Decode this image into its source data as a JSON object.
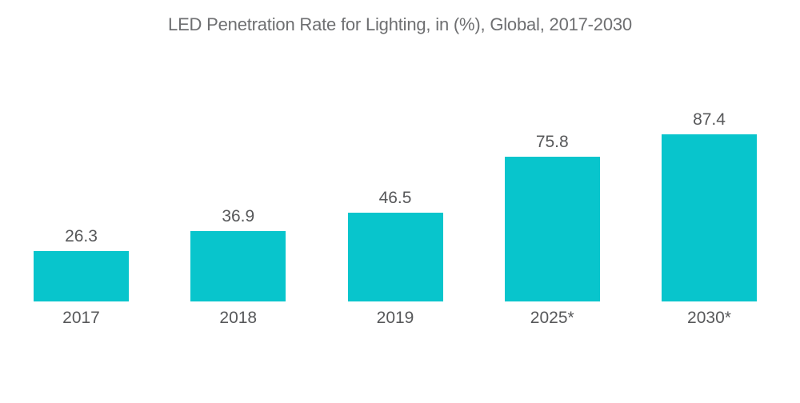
{
  "colors": {
    "background": "#ffffff",
    "bar": "#08c5cc",
    "title_text": "#6e6f71",
    "label_text": "#57585a"
  },
  "chart_data": {
    "type": "bar",
    "title": "LED Penetration Rate for Lighting, in (%), Global, 2017-2030",
    "categories": [
      "2017",
      "2018",
      "2019",
      "2025*",
      "2030*"
    ],
    "values": [
      26.3,
      36.9,
      46.5,
      75.8,
      87.4
    ],
    "data_labels": [
      "26.3",
      "36.9",
      "46.5",
      "75.8",
      "87.4"
    ],
    "xlabel": "",
    "ylabel": "",
    "ylim": [
      0,
      100
    ],
    "grid": false,
    "legend": "none",
    "axes_visible": false
  }
}
